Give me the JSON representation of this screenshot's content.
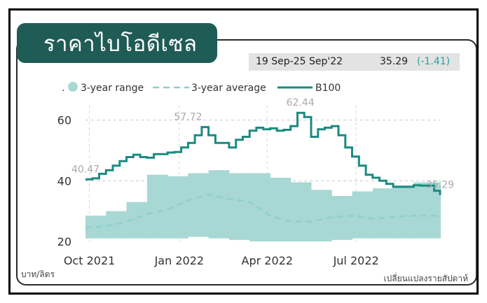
{
  "header": {
    "title": "ราคาไบโอดีเซล",
    "period": "19 Sep-25 Sep'22",
    "latest_value": "35.29",
    "latest_change": "(-1.41)"
  },
  "footer": {
    "unit_label": "บาท/ลิตร",
    "frequency_label": "เปลี่ยนแปลงรายสัปดาห์"
  },
  "colors": {
    "title_bg": "#1f5c55",
    "b100_line": "#1c8a80",
    "average_line": "#8fd0c9",
    "range_fill": "#a8d8d4",
    "change_text": "#23a497"
  },
  "chart_data": {
    "type": "line",
    "legend_position": "top",
    "legend": [
      {
        "key": "dot",
        "label": "."
      },
      {
        "key": "range",
        "label": "3-year range"
      },
      {
        "key": "average",
        "label": "3-year average"
      },
      {
        "key": "b100",
        "label": "B100"
      }
    ],
    "x_range": [
      "2021-09-27",
      "2022-09-25"
    ],
    "x_tick_labels": [
      "Oct 2021",
      "Jan 2022",
      "Apr 2022",
      "Jul 2022"
    ],
    "x_tick_dates": [
      "2021-10-01",
      "2022-01-01",
      "2022-04-01",
      "2022-07-01"
    ],
    "ylim": [
      20,
      65
    ],
    "y_ticks": [
      20,
      40,
      60
    ],
    "y_grid_dashed": [
      40,
      60
    ],
    "annotations": [
      {
        "text": "40.47",
        "x": "2021-09-27",
        "y": 40.47
      },
      {
        "text": "57.72",
        "x": "2022-01-10",
        "y": 57.72
      },
      {
        "text": "62.44",
        "x": "2022-05-05",
        "y": 62.44
      },
      {
        "text": "35.29",
        "x": "2022-09-25",
        "y": 35.29
      }
    ],
    "series": [
      {
        "name": "B100",
        "x": [
          "2021-09-27",
          "2021-10-04",
          "2021-10-11",
          "2021-10-18",
          "2021-10-25",
          "2021-11-01",
          "2021-11-08",
          "2021-11-15",
          "2021-11-22",
          "2021-11-29",
          "2021-12-06",
          "2021-12-13",
          "2021-12-20",
          "2021-12-27",
          "2022-01-03",
          "2022-01-10",
          "2022-01-17",
          "2022-01-24",
          "2022-01-31",
          "2022-02-07",
          "2022-02-14",
          "2022-02-21",
          "2022-02-28",
          "2022-03-07",
          "2022-03-14",
          "2022-03-21",
          "2022-03-28",
          "2022-04-04",
          "2022-04-11",
          "2022-04-18",
          "2022-04-25",
          "2022-05-02",
          "2022-05-09",
          "2022-05-16",
          "2022-05-23",
          "2022-05-30",
          "2022-06-06",
          "2022-06-13",
          "2022-06-20",
          "2022-06-27",
          "2022-07-04",
          "2022-07-11",
          "2022-07-18",
          "2022-07-25",
          "2022-08-01",
          "2022-08-08",
          "2022-08-15",
          "2022-08-22",
          "2022-08-29",
          "2022-09-05",
          "2022-09-12",
          "2022-09-19",
          "2022-09-25"
        ],
        "values": [
          40.5,
          40.8,
          42.3,
          43.5,
          45.0,
          46.5,
          47.8,
          48.6,
          47.8,
          47.6,
          48.8,
          48.8,
          49.3,
          49.5,
          51.0,
          52.5,
          55.0,
          57.7,
          55.0,
          52.5,
          52.5,
          51.0,
          53.5,
          54.5,
          56.5,
          57.5,
          57.0,
          57.3,
          56.5,
          56.8,
          58.0,
          62.4,
          61.0,
          54.5,
          57.0,
          57.5,
          58.0,
          55.0,
          51.0,
          48.0,
          45.0,
          42.0,
          41.0,
          40.0,
          39.0,
          38.0,
          38.0,
          38.0,
          38.5,
          38.4,
          38.4,
          36.7,
          35.3
        ]
      },
      {
        "name": "3-year average",
        "x": [
          "2021-09-27",
          "2021-10-18",
          "2021-11-08",
          "2021-11-29",
          "2021-12-20",
          "2022-01-10",
          "2022-01-31",
          "2022-02-21",
          "2022-03-14",
          "2022-04-04",
          "2022-04-25",
          "2022-05-16",
          "2022-06-06",
          "2022-06-27",
          "2022-07-18",
          "2022-08-08",
          "2022-08-29",
          "2022-09-25"
        ],
        "values": [
          24.5,
          25.0,
          26.5,
          29.0,
          30.5,
          33.5,
          35.5,
          34.0,
          33.0,
          28.5,
          26.5,
          26.5,
          28.0,
          28.5,
          27.5,
          28.0,
          28.5,
          28.5
        ]
      },
      {
        "name": "3-year range",
        "x": [
          "2021-09-27",
          "2021-10-18",
          "2021-11-08",
          "2021-11-29",
          "2021-12-20",
          "2022-01-10",
          "2022-01-31",
          "2022-02-21",
          "2022-03-14",
          "2022-04-04",
          "2022-04-25",
          "2022-05-16",
          "2022-06-06",
          "2022-06-27",
          "2022-07-18",
          "2022-08-08",
          "2022-08-29",
          "2022-09-25"
        ],
        "low": [
          21.0,
          21.0,
          21.0,
          21.0,
          21.0,
          21.5,
          21.0,
          20.5,
          20.0,
          20.0,
          20.0,
          20.0,
          20.5,
          21.0,
          21.0,
          21.0,
          21.0,
          21.0
        ],
        "high": [
          28.5,
          30.0,
          33.0,
          42.0,
          41.5,
          42.5,
          43.5,
          42.5,
          42.5,
          41.0,
          39.5,
          37.0,
          35.0,
          36.5,
          37.5,
          38.5,
          39.5,
          40.0
        ]
      }
    ]
  }
}
